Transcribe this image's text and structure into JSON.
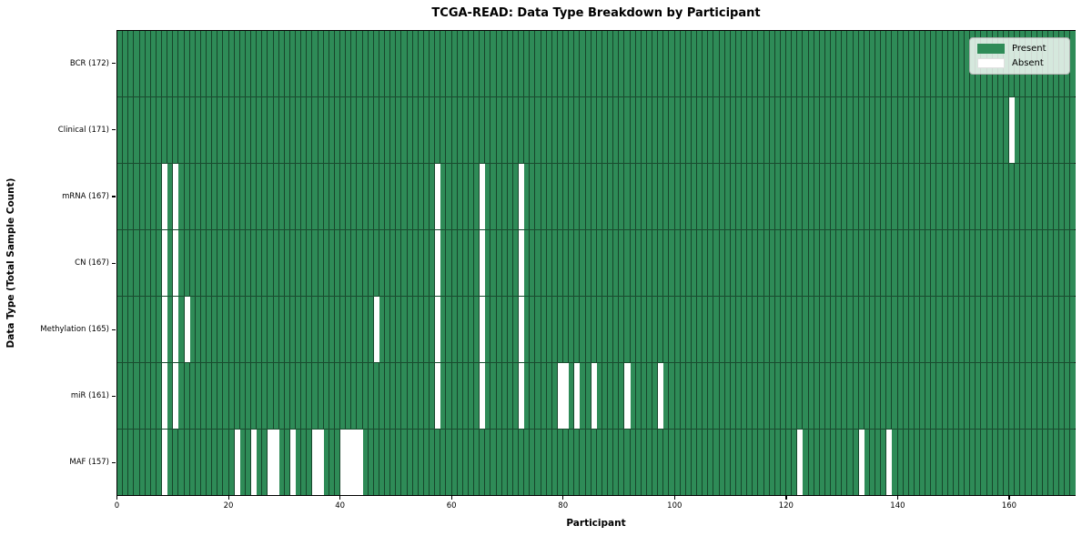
{
  "chart_data": {
    "type": "heatmap",
    "title": "TCGA-READ: Data Type Breakdown by Participant",
    "xlabel": "Participant",
    "ylabel": "Data Type (Total Sample Count)",
    "n_participants": 172,
    "x_ticks": [
      0,
      20,
      40,
      60,
      80,
      100,
      120,
      140,
      160
    ],
    "legend_labels": [
      "Present",
      "Absent"
    ],
    "legend_position": "upper right",
    "grid": "cell-edges",
    "colors": {
      "present": "#2e8b57",
      "absent": "#ffffff",
      "cell_edge": "rgba(0,0,0,0.5)"
    },
    "rows": [
      {
        "label": "BCR (172)",
        "data_type": "BCR",
        "present_count": 172,
        "absent_participants": []
      },
      {
        "label": "Clinical (171)",
        "data_type": "Clinical",
        "present_count": 171,
        "absent_participants": [
          160
        ]
      },
      {
        "label": "mRNA (167)",
        "data_type": "mRNA",
        "present_count": 167,
        "absent_participants": [
          8,
          10,
          57,
          65,
          72
        ]
      },
      {
        "label": "CN (167)",
        "data_type": "CN",
        "present_count": 167,
        "absent_participants": [
          8,
          10,
          57,
          65,
          72
        ]
      },
      {
        "label": "Methylation (165)",
        "data_type": "Methylation",
        "present_count": 165,
        "absent_participants": [
          8,
          10,
          12,
          46,
          57,
          65,
          72
        ]
      },
      {
        "label": "miR (161)",
        "data_type": "miR",
        "present_count": 161,
        "absent_participants": [
          8,
          10,
          57,
          65,
          72,
          79,
          80,
          82,
          85,
          91,
          97
        ]
      },
      {
        "label": "MAF (157)",
        "data_type": "MAF",
        "present_count": 157,
        "absent_participants": [
          8,
          21,
          24,
          27,
          28,
          31,
          35,
          36,
          40,
          41,
          42,
          43,
          122,
          133,
          138
        ]
      }
    ]
  }
}
